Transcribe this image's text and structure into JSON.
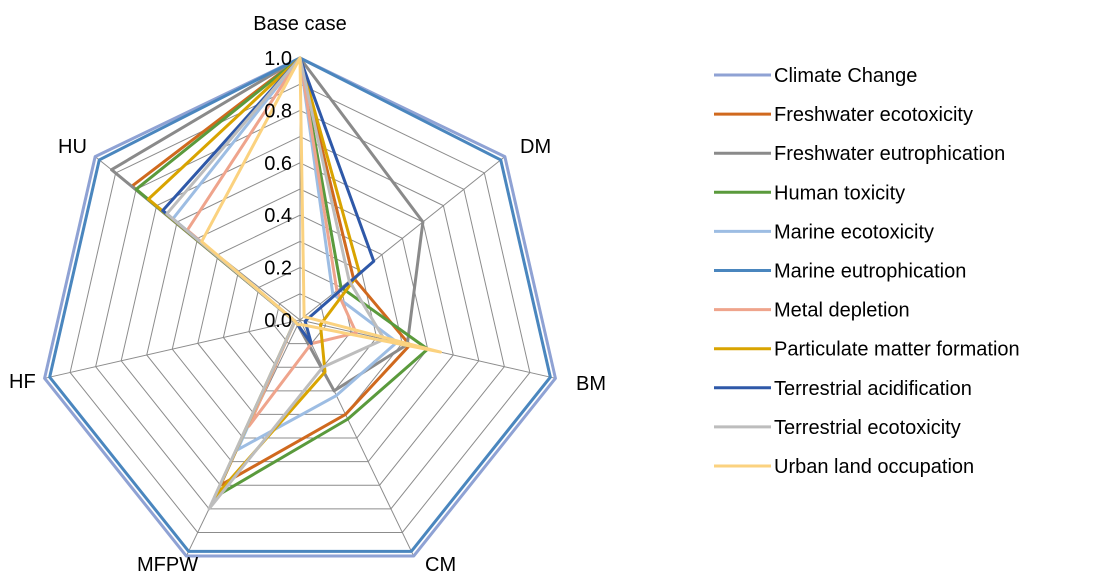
{
  "chart_data": {
    "type": "radar",
    "categories": [
      "Base case",
      "DM",
      "BM",
      "CM",
      "MFPW",
      "HF",
      "HU"
    ],
    "ticks": [
      "0.0",
      "0.2",
      "0.4",
      "0.6",
      "0.8",
      "1.0"
    ],
    "rmax": 1.0,
    "legend_position": "right",
    "series": [
      {
        "name": "Climate Change",
        "color": "#8fa2d4",
        "values": [
          1.0,
          1.0,
          1.0,
          1.0,
          1.0,
          1.0,
          1.0
        ]
      },
      {
        "name": "Freshwater ecotoxicity",
        "color": "#d0691e",
        "values": [
          1.0,
          0.26,
          0.43,
          0.4,
          0.7,
          0.02,
          0.82
        ]
      },
      {
        "name": "Freshwater eutrophication",
        "color": "#8a8a8a",
        "values": [
          1.0,
          0.6,
          0.42,
          0.3,
          0.02,
          0.02,
          0.92
        ]
      },
      {
        "name": "Human toxicity",
        "color": "#5a9a3c",
        "values": [
          1.0,
          0.2,
          0.5,
          0.42,
          0.75,
          0.02,
          0.8
        ]
      },
      {
        "name": "Marine ecotoxicity",
        "color": "#9dbde3",
        "values": [
          1.0,
          0.16,
          0.38,
          0.32,
          0.55,
          0.02,
          0.62
        ]
      },
      {
        "name": "Marine eutrophication",
        "color": "#4a86be",
        "values": [
          1.0,
          0.98,
          0.98,
          0.98,
          0.98,
          0.98,
          0.98
        ]
      },
      {
        "name": "Metal depletion",
        "color": "#efa48c",
        "values": [
          1.0,
          0.18,
          0.22,
          0.1,
          0.45,
          0.02,
          0.55
        ]
      },
      {
        "name": "Particulate matter formation",
        "color": "#d9a400",
        "values": [
          1.0,
          0.29,
          0.08,
          0.22,
          0.75,
          0.02,
          0.74
        ]
      },
      {
        "name": "Terrestrial acidification",
        "color": "#2e58a8",
        "values": [
          1.0,
          0.36,
          0.02,
          0.1,
          0.02,
          0.02,
          0.67
        ]
      },
      {
        "name": "Terrestrial ecotoxicity",
        "color": "#bdbdbd",
        "values": [
          1.0,
          0.24,
          0.33,
          0.2,
          0.8,
          0.02,
          0.65
        ]
      },
      {
        "name": "Urban land occupation",
        "color": "#fbd27f",
        "values": [
          1.0,
          0.02,
          0.55,
          0.02,
          0.02,
          0.02,
          0.48
        ]
      }
    ]
  }
}
